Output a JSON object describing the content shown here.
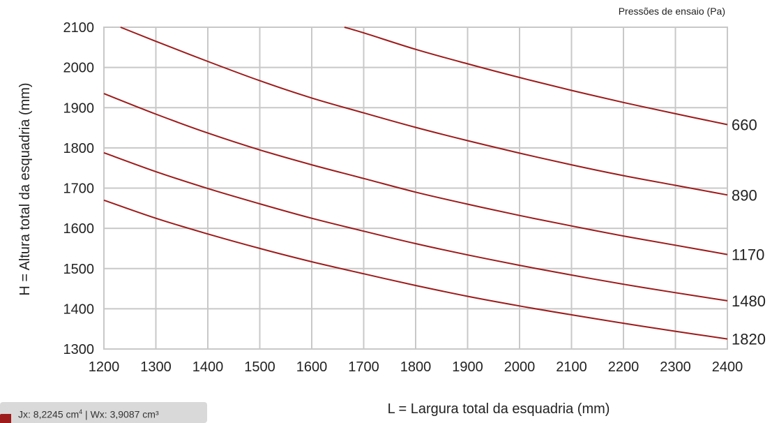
{
  "chart_data": {
    "type": "line",
    "legend_title": "Pressões de ensaio (Pa)",
    "xlabel": "L = Largura total da esquadria (mm)",
    "ylabel": "H = Altura total da esquadria (mm)",
    "xlim": [
      1200,
      2400
    ],
    "ylim": [
      1300,
      2100
    ],
    "x_ticks": [
      "1200",
      "1300",
      "1400",
      "1500",
      "1600",
      "1700",
      "1800",
      "1900",
      "2000",
      "2100",
      "2200",
      "2300",
      "2400"
    ],
    "y_ticks": [
      "1300",
      "1400",
      "1500",
      "1600",
      "1700",
      "1800",
      "1900",
      "2000",
      "2100"
    ],
    "grid": true,
    "line_color": "#9e1b1b",
    "series": [
      {
        "name": "660",
        "x": [
          1663,
          1700,
          1800,
          1900,
          2000,
          2100,
          2200,
          2300,
          2400
        ],
        "y": [
          2100,
          2086,
          2045,
          2009,
          1975,
          1943,
          1913,
          1885,
          1858
        ]
      },
      {
        "name": "890",
        "x": [
          1232,
          1300,
          1400,
          1500,
          1600,
          1700,
          1800,
          1900,
          2000,
          2100,
          2200,
          2300,
          2400
        ],
        "y": [
          2100,
          2065,
          2015,
          1967,
          1924,
          1887,
          1851,
          1818,
          1787,
          1758,
          1731,
          1707,
          1683
        ]
      },
      {
        "name": "1170",
        "x": [
          1200,
          1300,
          1400,
          1500,
          1600,
          1700,
          1800,
          1900,
          2000,
          2100,
          2200,
          2300,
          2400
        ],
        "y": [
          1935,
          1884,
          1837,
          1795,
          1758,
          1724,
          1690,
          1660,
          1632,
          1606,
          1581,
          1558,
          1535
        ]
      },
      {
        "name": "1480",
        "x": [
          1200,
          1300,
          1400,
          1500,
          1600,
          1700,
          1800,
          1900,
          2000,
          2100,
          2200,
          2300,
          2400
        ],
        "y": [
          1788,
          1741,
          1699,
          1661,
          1625,
          1593,
          1562,
          1534,
          1508,
          1484,
          1461,
          1440,
          1420
        ]
      },
      {
        "name": "1820",
        "x": [
          1200,
          1300,
          1400,
          1500,
          1600,
          1700,
          1800,
          1900,
          2000,
          2100,
          2200,
          2300,
          2400
        ],
        "y": [
          1670,
          1625,
          1586,
          1550,
          1517,
          1487,
          1458,
          1431,
          1407,
          1385,
          1364,
          1344,
          1325
        ]
      }
    ]
  },
  "info": {
    "jx_prefix": "Jx: 8,2245 cm",
    "jx_unit_sup": "4",
    "separator": " | ",
    "wx": "Wx: 3,9087 cm³"
  }
}
